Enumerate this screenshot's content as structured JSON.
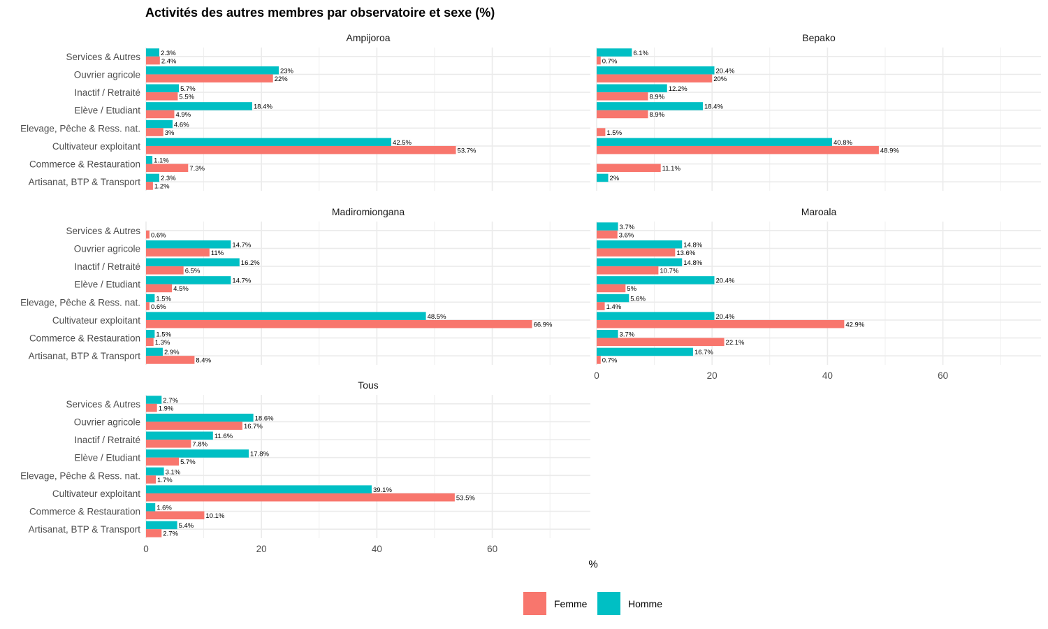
{
  "chart_data": {
    "type": "bar",
    "orientation": "horizontal",
    "title": "Activités des autres membres par observatoire et sexe (%)",
    "xlabel": "%",
    "ylabel": "",
    "xlim": [
      0,
      77
    ],
    "x_ticks": [
      0,
      20,
      40,
      60
    ],
    "x_tick_labels": [
      "0",
      "20",
      "40",
      "60"
    ],
    "grid": true,
    "legend": {
      "position": "bottom",
      "entries": [
        {
          "name": "Femme",
          "color": "#F8766D"
        },
        {
          "name": "Homme",
          "color": "#00BFC4"
        }
      ]
    },
    "categories": [
      "Services & Autres",
      "Ouvrier agricole",
      "Inactif / Retraité",
      "Elève / Etudiant",
      "Elevage, Pêche & Ress. nat.",
      "Cultivateur exploitant",
      "Commerce & Restauration",
      "Artisanat, BTP & Transport"
    ],
    "panels": [
      {
        "name": "Ampijoroa",
        "series": [
          {
            "name": "Homme",
            "values": [
              2.3,
              23,
              5.7,
              18.4,
              4.6,
              42.5,
              1.1,
              2.3
            ],
            "labels": [
              "2.3%",
              "23%",
              "5.7%",
              "18.4%",
              "4.6%",
              "42.5%",
              "1.1%",
              "2.3%"
            ]
          },
          {
            "name": "Femme",
            "values": [
              2.4,
              22,
              5.5,
              4.9,
              3,
              53.7,
              7.3,
              1.2
            ],
            "labels": [
              "2.4%",
              "22%",
              "5.5%",
              "4.9%",
              "3%",
              "53.7%",
              "7.3%",
              "1.2%"
            ]
          }
        ]
      },
      {
        "name": "Bepako",
        "series": [
          {
            "name": "Homme",
            "values": [
              6.1,
              20.4,
              12.2,
              18.4,
              null,
              40.8,
              null,
              2
            ],
            "labels": [
              "6.1%",
              "20.4%",
              "12.2%",
              "18.4%",
              null,
              "40.8%",
              null,
              "2%"
            ]
          },
          {
            "name": "Femme",
            "values": [
              0.7,
              20,
              8.9,
              8.9,
              1.5,
              48.9,
              11.1,
              null
            ],
            "labels": [
              "0.7%",
              "20%",
              "8.9%",
              "8.9%",
              "1.5%",
              "48.9%",
              "11.1%",
              null
            ]
          }
        ]
      },
      {
        "name": "Madiromiongana",
        "series": [
          {
            "name": "Homme",
            "values": [
              null,
              14.7,
              16.2,
              14.7,
              1.5,
              48.5,
              1.5,
              2.9
            ],
            "labels": [
              null,
              "14.7%",
              "16.2%",
              "14.7%",
              "1.5%",
              "48.5%",
              "1.5%",
              "2.9%"
            ]
          },
          {
            "name": "Femme",
            "values": [
              0.6,
              11,
              6.5,
              4.5,
              0.6,
              66.9,
              1.3,
              8.4
            ],
            "labels": [
              "0.6%",
              "11%",
              "6.5%",
              "4.5%",
              "0.6%",
              "66.9%",
              "1.3%",
              "8.4%"
            ]
          }
        ]
      },
      {
        "name": "Maroala",
        "series": [
          {
            "name": "Homme",
            "values": [
              3.7,
              14.8,
              14.8,
              20.4,
              5.6,
              20.4,
              3.7,
              16.7
            ],
            "labels": [
              "3.7%",
              "14.8%",
              "14.8%",
              "20.4%",
              "5.6%",
              "20.4%",
              "3.7%",
              "16.7%"
            ]
          },
          {
            "name": "Femme",
            "values": [
              3.6,
              13.6,
              10.7,
              5,
              1.4,
              42.9,
              22.1,
              0.7
            ],
            "labels": [
              "3.6%",
              "13.6%",
              "10.7%",
              "5%",
              "1.4%",
              "42.9%",
              "22.1%",
              "0.7%"
            ]
          }
        ]
      },
      {
        "name": "Tous",
        "series": [
          {
            "name": "Homme",
            "values": [
              2.7,
              18.6,
              11.6,
              17.8,
              3.1,
              39.1,
              1.6,
              5.4
            ],
            "labels": [
              "2.7%",
              "18.6%",
              "11.6%",
              "17.8%",
              "3.1%",
              "39.1%",
              "1.6%",
              "5.4%"
            ]
          },
          {
            "name": "Femme",
            "values": [
              1.9,
              16.7,
              7.8,
              5.7,
              1.7,
              53.5,
              10.1,
              2.7
            ],
            "labels": [
              "1.9%",
              "16.7%",
              "7.8%",
              "5.7%",
              "1.7%",
              "53.5%",
              "10.1%",
              "2.7%"
            ]
          }
        ]
      }
    ]
  }
}
